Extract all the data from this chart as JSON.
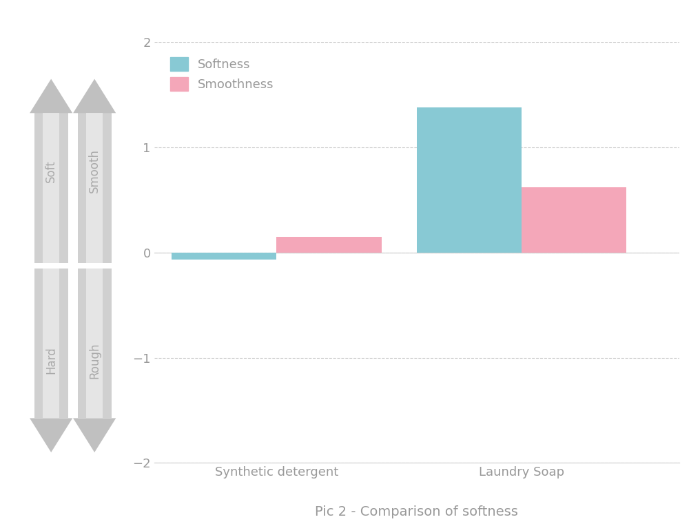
{
  "categories": [
    "Synthetic detergent",
    "Laundry Soap"
  ],
  "softness_values": [
    -0.07,
    1.38
  ],
  "smoothness_values": [
    0.15,
    0.62
  ],
  "softness_color": "#88c9d4",
  "smoothness_color": "#f4a7b9",
  "title": "Pic 2 - Comparison of softness",
  "title_fontsize": 15,
  "ylim": [
    -2,
    2
  ],
  "yticks": [
    -2,
    -1,
    0,
    1,
    2
  ],
  "legend_labels": [
    "Softness",
    "Smoothness"
  ],
  "bar_width": 0.3,
  "background_color": "#ffffff",
  "tick_label_color": "#999999",
  "grid_color": "#cccccc",
  "arrow1_labels": [
    "Soft",
    "Hard"
  ],
  "arrow2_labels": [
    "Smooth",
    "Rough"
  ],
  "arrow_color_light": "#e0e0e0",
  "arrow_color_dark": "#b0b0b0",
  "arrow_text_color": "#aaaaaa"
}
